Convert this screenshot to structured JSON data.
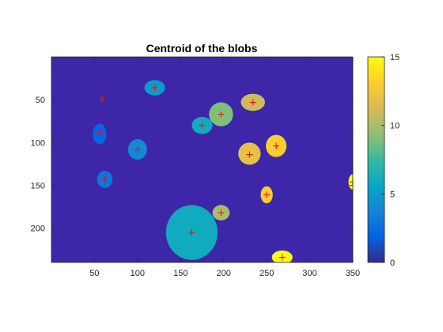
{
  "chart_data": {
    "type": "heatmap",
    "title": "Centroid of the blobs",
    "xlabel": "",
    "ylabel": "",
    "xlim": [
      0,
      350
    ],
    "ylim": [
      240,
      0
    ],
    "y_reversed": true,
    "xticks": [
      50,
      100,
      150,
      200,
      250,
      300,
      350
    ],
    "yticks": [
      50,
      100,
      150,
      200
    ],
    "background_value": 0,
    "colorbar": {
      "clim": [
        0,
        15
      ],
      "ticks": [
        0,
        5,
        10,
        15
      ],
      "colormap": "parula"
    },
    "blobs": [
      {
        "label": 1,
        "x": 59,
        "y": 49,
        "rx": 3,
        "ry": 3
      },
      {
        "label": 2,
        "x": 56,
        "y": 90,
        "rx": 8,
        "ry": 12
      },
      {
        "label": 3,
        "x": 62,
        "y": 143,
        "rx": 9,
        "ry": 10
      },
      {
        "label": 4,
        "x": 100,
        "y": 108,
        "rx": 11,
        "ry": 12
      },
      {
        "label": 5,
        "x": 120,
        "y": 36,
        "rx": 12,
        "ry": 9
      },
      {
        "label": 6,
        "x": 175,
        "y": 80,
        "rx": 12,
        "ry": 10
      },
      {
        "label": 6,
        "x": 163,
        "y": 205,
        "rx": 30,
        "ry": 32
      },
      {
        "label": 9,
        "x": 197,
        "y": 67,
        "rx": 14,
        "ry": 14
      },
      {
        "label": 10,
        "x": 197,
        "y": 182,
        "rx": 10,
        "ry": 9
      },
      {
        "label": 11,
        "x": 234,
        "y": 53,
        "rx": 14,
        "ry": 10
      },
      {
        "label": 12,
        "x": 230,
        "y": 113,
        "rx": 13,
        "ry": 13
      },
      {
        "label": 13,
        "x": 261,
        "y": 104,
        "rx": 12,
        "ry": 13
      },
      {
        "label": 13,
        "x": 250,
        "y": 161,
        "rx": 7,
        "ry": 10
      },
      {
        "label": 15,
        "x": 350,
        "y": 146,
        "rx": 5,
        "ry": 9
      },
      {
        "label": 15,
        "x": 268,
        "y": 234,
        "rx": 12,
        "ry": 8
      }
    ],
    "centroids": [
      {
        "x": 59,
        "y": 49
      },
      {
        "x": 56,
        "y": 88
      },
      {
        "x": 62,
        "y": 143
      },
      {
        "x": 100,
        "y": 108
      },
      {
        "x": 120,
        "y": 36
      },
      {
        "x": 175,
        "y": 80
      },
      {
        "x": 197,
        "y": 67
      },
      {
        "x": 234,
        "y": 53
      },
      {
        "x": 230,
        "y": 114
      },
      {
        "x": 261,
        "y": 104
      },
      {
        "x": 350,
        "y": 146
      },
      {
        "x": 197,
        "y": 182
      },
      {
        "x": 250,
        "y": 161
      },
      {
        "x": 163,
        "y": 205
      },
      {
        "x": 268,
        "y": 234
      }
    ],
    "marker_color": "#ff0000",
    "colors": {
      "background": "#3d26a8",
      "axes_line": "#262626"
    }
  }
}
